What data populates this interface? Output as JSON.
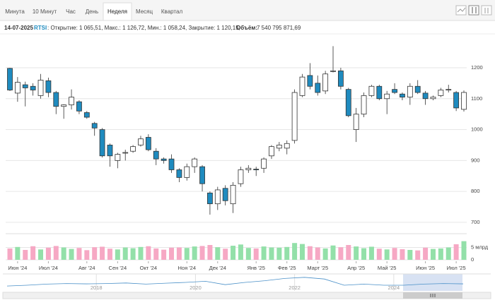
{
  "tabs": [
    "Минута",
    "10 Минут",
    "Час",
    "День",
    "Неделя",
    "Месяц",
    "Квартал"
  ],
  "active_tab": 4,
  "hover": {
    "date": "14-07-2025",
    "symbol": "RTSI",
    "ohlc_text": ": Открытие: 1 065,51, Макс.: 1 126,72, Мин.: 1 058,24, Закрытие: 1 120,15,",
    "volume_label": "Объём:",
    "volume_text": "7 540 795 871,69"
  },
  "chart_data": {
    "type": "candlestick",
    "categories": [
      null,
      "Июн '24",
      null,
      null,
      null,
      "Июл '24",
      null,
      null,
      null,
      null,
      "Авг '24",
      null,
      null,
      null,
      "Сен '24",
      null,
      null,
      null,
      "Окт '24",
      null,
      null,
      null,
      null,
      "Ноя '24",
      null,
      null,
      null,
      "Дек '24",
      null,
      null,
      null,
      null,
      "Янв '25",
      null,
      null,
      null,
      "Фев '25",
      null,
      null,
      null,
      "Март '25",
      null,
      null,
      null,
      null,
      "Апр '25",
      null,
      null,
      null,
      "Май '25",
      null,
      null,
      null,
      null,
      "Июн '25",
      null,
      null,
      null,
      "Июл '25",
      null
    ],
    "open": [
      1198,
      1118,
      1145,
      1140,
      1110,
      1158,
      1120,
      1075,
      1080,
      1090,
      1055,
      1020,
      1000,
      950,
      900,
      925,
      930,
      950,
      975,
      930,
      905,
      905,
      870,
      845,
      880,
      880,
      795,
      760,
      810,
      760,
      825,
      870,
      872,
      875,
      915,
      940,
      940,
      965,
      1110,
      1175,
      1150,
      1125,
      1188,
      1190,
      1130,
      1000,
      1050,
      1110,
      1140,
      1100,
      1130,
      1115,
      1105,
      1140,
      1118,
      1100,
      1110,
      1130,
      1120,
      1065.51
    ],
    "high": [
      1200,
      1170,
      1155,
      1150,
      1180,
      1168,
      1125,
      1082,
      1130,
      1095,
      1060,
      1025,
      1005,
      955,
      925,
      935,
      950,
      980,
      985,
      940,
      910,
      920,
      875,
      890,
      910,
      885,
      800,
      815,
      820,
      830,
      880,
      885,
      880,
      910,
      950,
      960,
      965,
      1130,
      1180,
      1215,
      1175,
      1190,
      1270,
      1200,
      1135,
      1070,
      1120,
      1145,
      1145,
      1125,
      1150,
      1120,
      1150,
      1160,
      1125,
      1110,
      1135,
      1145,
      1125,
      1126.72
    ],
    "low": [
      1125,
      1090,
      1075,
      1110,
      1100,
      1105,
      1050,
      1035,
      1065,
      1050,
      1035,
      980,
      910,
      880,
      875,
      900,
      925,
      945,
      930,
      885,
      890,
      860,
      830,
      835,
      860,
      800,
      725,
      740,
      755,
      730,
      815,
      860,
      850,
      860,
      905,
      930,
      920,
      955,
      1105,
      1130,
      1110,
      1115,
      1185,
      1130,
      1040,
      960,
      1040,
      1105,
      1095,
      1050,
      1115,
      1095,
      1080,
      1115,
      1080,
      1095,
      1105,
      1120,
      1060,
      1058.24
    ],
    "close": [
      1128,
      1153,
      1135,
      1128,
      1160,
      1120,
      1075,
      1080,
      1105,
      1060,
      1040,
      1005,
      915,
      915,
      920,
      926,
      945,
      970,
      935,
      905,
      900,
      870,
      845,
      880,
      905,
      825,
      760,
      805,
      770,
      820,
      870,
      875,
      870,
      905,
      945,
      950,
      955,
      1120,
      1170,
      1140,
      1120,
      1180,
      1190,
      1140,
      1045,
      1050,
      1110,
      1140,
      1100,
      1115,
      1120,
      1105,
      1140,
      1120,
      1100,
      1105,
      1128,
      1130,
      1070,
      1120.15
    ],
    "volume": [
      4600000000,
      5200000000,
      4000000000,
      5500000000,
      4200000000,
      4900000000,
      5600000000,
      5000000000,
      4400000000,
      4800000000,
      3900000000,
      5100000000,
      5300000000,
      4500000000,
      4200000000,
      5000000000,
      4700000000,
      5200000000,
      5500000000,
      4600000000,
      4100000000,
      4900000000,
      5000000000,
      4800000000,
      5400000000,
      5600000000,
      6000000000,
      5100000000,
      4500000000,
      5700000000,
      6200000000,
      4800000000,
      4600000000,
      5400000000,
      5000000000,
      4900000000,
      5200000000,
      6800000000,
      6400000000,
      5500000000,
      5000000000,
      4600000000,
      5800000000,
      5100000000,
      6000000000,
      5400000000,
      4700000000,
      5300000000,
      4500000000,
      4200000000,
      4800000000,
      4300000000,
      4000000000,
      3800000000,
      4900000000,
      4400000000,
      4600000000,
      5000000000,
      6300000000,
      7540795871.69
    ],
    "up_color": "#ffffff",
    "down_color": "#1f8bbf",
    "volume_up_color": "#93e0a9",
    "volume_down_color": "#f6a8c4",
    "ylim": [
      677,
      1305
    ],
    "yticks": [
      700,
      800,
      900,
      1000,
      1100,
      1200
    ],
    "volume_ylim": [
      0,
      10000000000
    ],
    "volume_yticks": [
      0,
      {
        "value": 5000000000,
        "label": "5 млрд"
      }
    ],
    "grid": true,
    "navigator": {
      "x": [
        2016.2,
        2016.6,
        2017.0,
        2017.4,
        2017.8,
        2018.2,
        2018.6,
        2019.0,
        2019.4,
        2019.8,
        2020.2,
        2020.6,
        2021.0,
        2021.4,
        2021.8,
        2022.2,
        2022.6,
        2023.0,
        2023.4,
        2023.8,
        2024.2,
        2024.6,
        2025.0,
        2025.4
      ],
      "values": [
        930,
        1000,
        1100,
        1150,
        1120,
        1150,
        1200,
        1100,
        1180,
        1250,
        1350,
        1050,
        1250,
        1400,
        1600,
        1700,
        1550,
        1000,
        1100,
        1000,
        1000,
        1100,
        1150,
        1120
      ],
      "xlim": [
        2016.2,
        2025.4
      ],
      "ylim": [
        500,
        2000
      ],
      "xticks": [
        2018,
        2020,
        2022,
        2024
      ],
      "color": "#4a90c8"
    }
  }
}
